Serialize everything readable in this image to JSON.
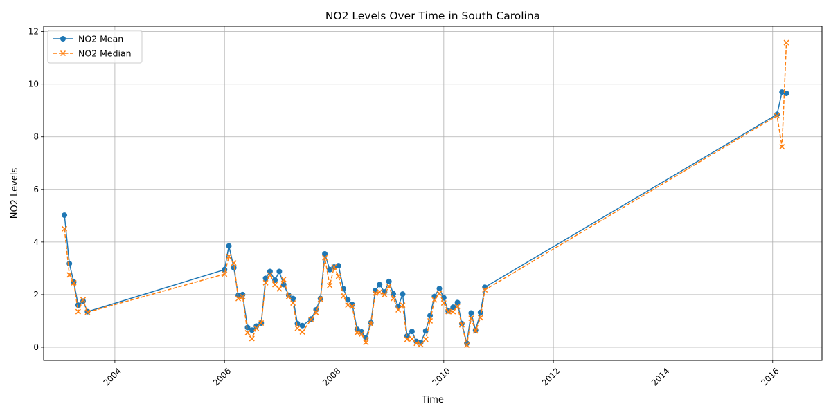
{
  "chart_data": {
    "type": "line",
    "title": "NO2 Levels Over Time in South Carolina",
    "xlabel": "Time",
    "ylabel": "NO2 Levels",
    "xlim": [
      2002.7,
      2016.9
    ],
    "ylim": [
      -0.5,
      12.2
    ],
    "xticks": [
      2004,
      2006,
      2008,
      2010,
      2012,
      2014,
      2016
    ],
    "yticks": [
      0,
      2,
      4,
      6,
      8,
      10,
      12
    ],
    "grid": true,
    "legend_position": "top-left",
    "colors": {
      "mean": "#1f77b4",
      "median": "#ff7f0e"
    },
    "x": [
      2003.08,
      2003.17,
      2003.25,
      2003.33,
      2003.42,
      2003.5,
      2006.0,
      2006.08,
      2006.17,
      2006.25,
      2006.33,
      2006.42,
      2006.5,
      2006.58,
      2006.67,
      2006.75,
      2006.83,
      2006.92,
      2007.0,
      2007.08,
      2007.17,
      2007.25,
      2007.33,
      2007.42,
      2007.58,
      2007.67,
      2007.75,
      2007.83,
      2007.92,
      2008.0,
      2008.08,
      2008.17,
      2008.25,
      2008.33,
      2008.42,
      2008.5,
      2008.58,
      2008.67,
      2008.75,
      2008.83,
      2008.92,
      2009.0,
      2009.08,
      2009.17,
      2009.25,
      2009.33,
      2009.42,
      2009.5,
      2009.58,
      2009.67,
      2009.75,
      2009.83,
      2009.92,
      2010.0,
      2010.08,
      2010.17,
      2010.25,
      2010.33,
      2010.42,
      2010.5,
      2010.58,
      2010.67,
      2010.75,
      2016.08,
      2016.17,
      2016.25
    ],
    "series": [
      {
        "name": "NO2 Mean",
        "marker": "circle",
        "linestyle": "solid",
        "values": [
          5.02,
          3.18,
          2.48,
          1.6,
          1.75,
          1.35,
          2.95,
          3.85,
          3.02,
          1.97,
          2.0,
          0.75,
          0.65,
          0.8,
          0.92,
          2.62,
          2.88,
          2.55,
          2.88,
          2.38,
          1.98,
          1.85,
          0.9,
          0.82,
          1.07,
          1.42,
          1.85,
          3.55,
          2.95,
          3.05,
          3.1,
          2.22,
          1.8,
          1.62,
          0.68,
          0.58,
          0.35,
          0.93,
          2.15,
          2.38,
          2.1,
          2.5,
          2.03,
          1.55,
          2.02,
          0.42,
          0.6,
          0.22,
          0.18,
          0.62,
          1.2,
          1.93,
          2.23,
          1.88,
          1.38,
          1.52,
          1.7,
          0.9,
          0.15,
          1.3,
          0.65,
          1.32,
          2.28,
          8.85,
          9.7,
          9.65
        ]
      },
      {
        "name": "NO2 Median",
        "marker": "x",
        "linestyle": "dashed",
        "values": [
          4.5,
          2.75,
          2.45,
          1.35,
          1.8,
          1.33,
          2.78,
          3.45,
          3.2,
          1.85,
          1.92,
          0.55,
          0.33,
          0.72,
          0.92,
          2.45,
          2.75,
          2.38,
          2.22,
          2.58,
          1.92,
          1.68,
          0.72,
          0.58,
          1.05,
          1.32,
          1.82,
          3.4,
          2.35,
          3.05,
          2.7,
          1.95,
          1.6,
          1.55,
          0.55,
          0.5,
          0.18,
          0.88,
          2.05,
          2.1,
          2.0,
          2.32,
          1.85,
          1.42,
          1.6,
          0.3,
          0.32,
          0.15,
          0.1,
          0.3,
          1.0,
          1.8,
          2.05,
          1.68,
          1.35,
          1.35,
          1.55,
          0.85,
          0.08,
          1.1,
          0.62,
          1.12,
          2.18,
          8.8,
          7.62,
          11.58
        ]
      }
    ]
  }
}
